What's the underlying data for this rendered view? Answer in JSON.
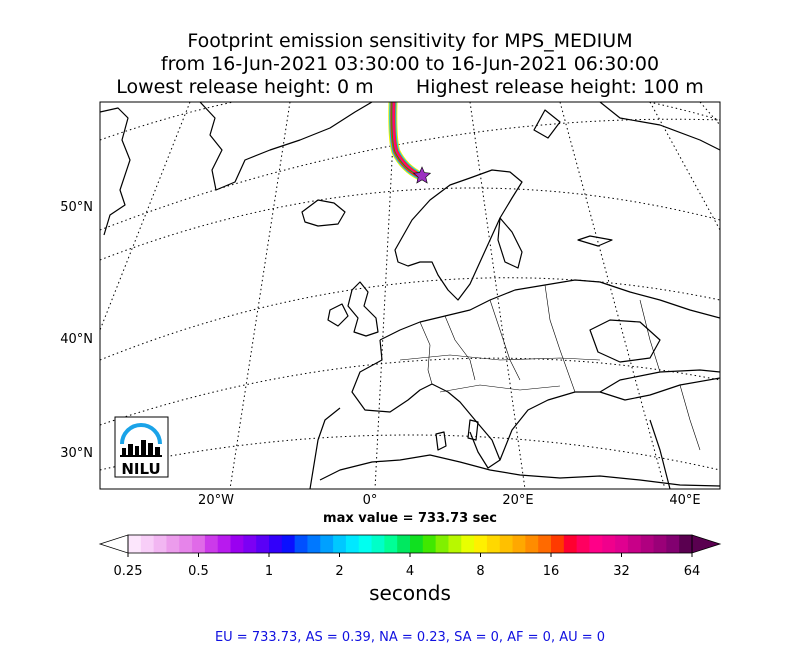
{
  "title": {
    "line1": "Footprint emission sensitivity for MPS_MEDIUM",
    "line2": "from 16-Jun-2021 03:30:00 to 16-Jun-2021 06:30:00",
    "line3": "Lowest release height: 0 m       Highest release height: 100 m"
  },
  "map": {
    "lat_labels": [
      "50°N",
      "40°N",
      "30°N"
    ],
    "lon_labels": [
      "20°W",
      "0°",
      "20°E",
      "40°E"
    ],
    "logo_text": "NILU",
    "colors": {
      "land_outline": "#000000",
      "graticule": "#000000",
      "release_marker": "#9b30c0"
    }
  },
  "max_value": "max value = 733.73 sec",
  "colorbar": {
    "ticks": [
      "0.25",
      "0.5",
      "1",
      "2",
      "4",
      "8",
      "16",
      "32",
      "64"
    ],
    "unit": "seconds",
    "colors": [
      "#fce6fc",
      "#f8cef8",
      "#f2b6f2",
      "#ec9cec",
      "#e684ea",
      "#e06ae8",
      "#cc3aea",
      "#b81aee",
      "#9a00f0",
      "#7c00f4",
      "#5a00f6",
      "#3200fa",
      "#0a10ff",
      "#0050ff",
      "#0078ff",
      "#00a0ff",
      "#00c8ff",
      "#00e8ff",
      "#00fff0",
      "#00ffc8",
      "#00ff96",
      "#00e860",
      "#10e020",
      "#40e800",
      "#80f000",
      "#b8f800",
      "#e8ff00",
      "#fff000",
      "#ffd800",
      "#ffc000",
      "#ffa800",
      "#ff8c00",
      "#ff6a00",
      "#ff3a00",
      "#ff0030",
      "#ff0060",
      "#ff0088",
      "#f0008c",
      "#e00090",
      "#c80088",
      "#b00080",
      "#9a0078",
      "#820070",
      "#5a0050"
    ]
  },
  "stats": "EU = 733.73,  AS = 0.39,  NA = 0.23,  SA = 0,  AF = 0,  AU = 0"
}
